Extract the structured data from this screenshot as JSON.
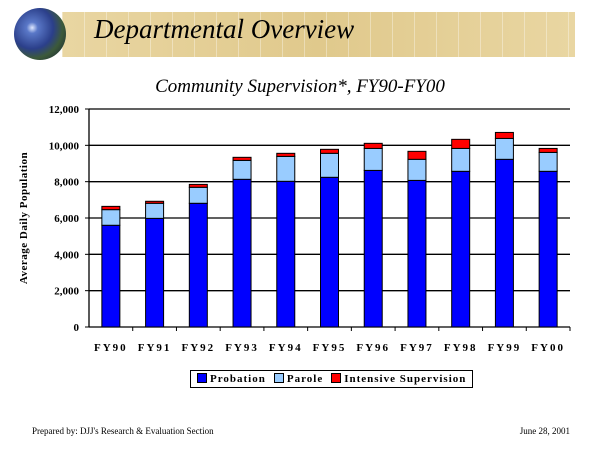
{
  "header": {
    "title": "Departmental Overview"
  },
  "footer": {
    "prepared_by": "Prepared by: DJJ's Research & Evaluation Section",
    "date": "June 28, 2001"
  },
  "chart_data": {
    "type": "bar",
    "stacked": true,
    "title": "Community Supervision*, FY90-FY00",
    "xlabel": "",
    "ylabel": "Average Daily Population",
    "ylim": [
      0,
      12000
    ],
    "yticks": [
      0,
      2000,
      4000,
      6000,
      8000,
      10000,
      12000
    ],
    "ytick_labels": [
      "0",
      "2,000",
      "4,000",
      "6,000",
      "8,000",
      "10,000",
      "12,000"
    ],
    "grid": true,
    "legend_position": "bottom",
    "categories": [
      "FY90",
      "FY91",
      "FY92",
      "FY93",
      "FY94",
      "FY95",
      "FY96",
      "FY97",
      "FY98",
      "FY99",
      "FY00"
    ],
    "series": [
      {
        "name": "Probation",
        "color": "#0000ff",
        "values": [
          5600,
          5980,
          6810,
          8130,
          8020,
          8240,
          8620,
          8070,
          8570,
          9230,
          8570
        ]
      },
      {
        "name": "Parole",
        "color": "#99ccff",
        "values": [
          860,
          830,
          880,
          1040,
          1370,
          1320,
          1210,
          1160,
          1260,
          1150,
          1040
        ]
      },
      {
        "name": "Intensive Supervision",
        "color": "#ff0000",
        "values": [
          180,
          110,
          160,
          170,
          170,
          220,
          280,
          440,
          500,
          330,
          220
        ]
      }
    ]
  }
}
